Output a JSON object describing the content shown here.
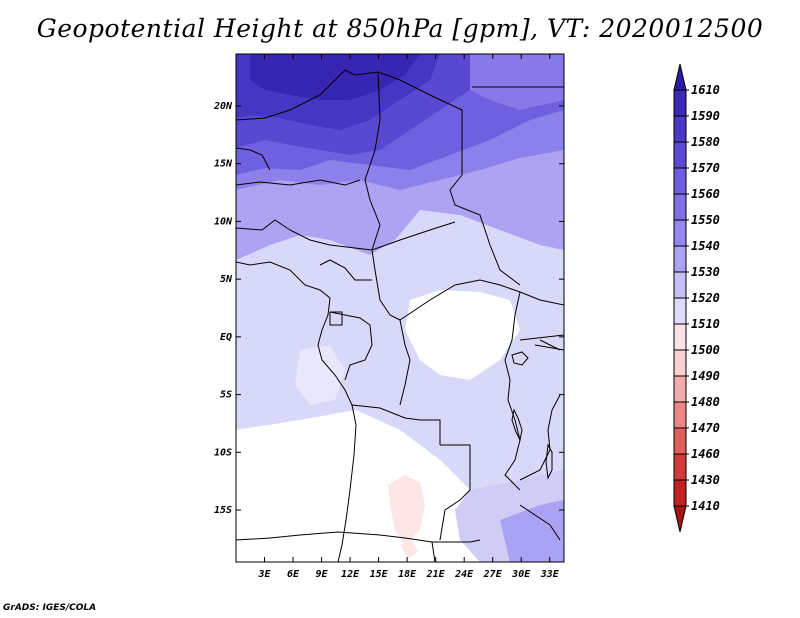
{
  "title": "Geopotential Height at 850hPa [gpm], VT: 2020012500",
  "credit": "GrADS: IGES/COLA",
  "map": {
    "lat_labels": [
      "20N",
      "15N",
      "10N",
      "5N",
      "EQ",
      "5S",
      "10S",
      "15S"
    ],
    "lat_values": [
      20,
      15,
      10,
      5,
      0,
      -5,
      -10,
      -15
    ],
    "lon_labels": [
      "3E",
      "6E",
      "9E",
      "12E",
      "15E",
      "18E",
      "21E",
      "24E",
      "27E",
      "30E",
      "33E"
    ],
    "lon_values": [
      3,
      6,
      9,
      12,
      15,
      18,
      21,
      24,
      27,
      30,
      33
    ],
    "lon_range": [
      0,
      34.5
    ],
    "lat_range": [
      -19.5,
      24.5
    ]
  },
  "colorbar": {
    "labels": [
      "1610",
      "1590",
      "1580",
      "1570",
      "1560",
      "1550",
      "1540",
      "1530",
      "1520",
      "1510",
      "1500",
      "1490",
      "1480",
      "1470",
      "1460",
      "1430",
      "1410"
    ],
    "colors": [
      "#2a1aa6",
      "#3a2ab6",
      "#4a3ac6",
      "#5a4ad4",
      "#6c5ede",
      "#8070e6",
      "#9488ec",
      "#aaa2f2",
      "#c4c0f6",
      "#dcdcfa",
      "#fce4e4",
      "#fad0d0",
      "#f4acac",
      "#ec8888",
      "#e06060",
      "#d03a3a",
      "#c02020",
      "#a81414"
    ]
  }
}
